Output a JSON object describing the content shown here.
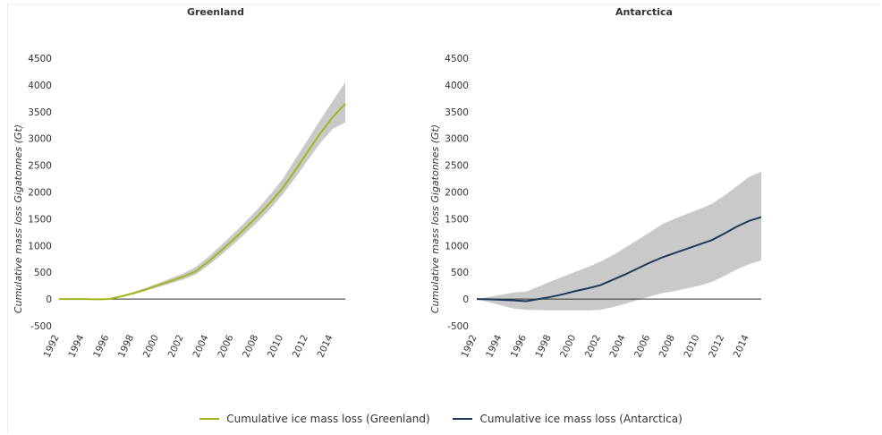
{
  "chart_data": [
    {
      "type": "area",
      "title": "Greenland",
      "xlabel": "",
      "ylabel": "Cumulative mass loss Gigatonnes (Gt)",
      "xlim": [
        1992,
        2015
      ],
      "ylim": [
        -500,
        4500
      ],
      "x_ticks": [
        "1992",
        "1994",
        "1996",
        "1998",
        "2000",
        "2002",
        "2004",
        "2006",
        "2008",
        "2010",
        "2012",
        "2014"
      ],
      "y_ticks": [
        "4500",
        "4000",
        "3500",
        "3000",
        "2500",
        "2000",
        "1500",
        "1000",
        "500",
        "0",
        "-500"
      ],
      "grid": false,
      "series": [
        {
          "name": "Cumulative ice mass loss (Greenland)",
          "color": "#a4b51c",
          "x": [
            1992,
            1993,
            1994,
            1995,
            1996,
            1997,
            1998,
            1999,
            2000,
            2001,
            2002,
            2003,
            2004,
            2005,
            2006,
            2007,
            2008,
            2009,
            2010,
            2011,
            2012,
            2013,
            2014,
            2015
          ],
          "values": [
            0,
            0,
            0,
            -5,
            0,
            50,
            110,
            180,
            260,
            340,
            420,
            520,
            700,
            900,
            1110,
            1330,
            1560,
            1810,
            2080,
            2410,
            2760,
            3100,
            3400,
            3650
          ],
          "lower": [
            0,
            0,
            0,
            -5,
            -5,
            35,
            90,
            155,
            225,
            295,
            365,
            460,
            630,
            820,
            1020,
            1230,
            1450,
            1690,
            1960,
            2270,
            2600,
            2920,
            3180,
            3300
          ],
          "upper": [
            0,
            0,
            0,
            -5,
            5,
            65,
            130,
            210,
            300,
            390,
            480,
            600,
            790,
            1000,
            1220,
            1450,
            1690,
            1960,
            2250,
            2620,
            2980,
            3350,
            3700,
            4050
          ]
        }
      ]
    },
    {
      "type": "area",
      "title": "Antarctica",
      "xlabel": "",
      "ylabel": "Cumulative mass loss Gigatonnes (Gt)",
      "xlim": [
        1992,
        2015
      ],
      "ylim": [
        -500,
        4500
      ],
      "x_ticks": [
        "1992",
        "1994",
        "1996",
        "1998",
        "2000",
        "2002",
        "2004",
        "2006",
        "2008",
        "2010",
        "2012",
        "2014"
      ],
      "y_ticks": [
        "4500",
        "4000",
        "3500",
        "3000",
        "2500",
        "2000",
        "1500",
        "1000",
        "500",
        "0",
        "-500"
      ],
      "grid": false,
      "series": [
        {
          "name": "Cumulative ice mass loss (Antarctica)",
          "color": "#1b3a5c",
          "x": [
            1992,
            1993,
            1994,
            1995,
            1996,
            1997,
            1998,
            1999,
            2000,
            2001,
            2002,
            2003,
            2004,
            2005,
            2006,
            2007,
            2008,
            2009,
            2010,
            2011,
            2012,
            2013,
            2014,
            2015
          ],
          "values": [
            0,
            -5,
            -15,
            -25,
            -40,
            0,
            40,
            90,
            150,
            200,
            260,
            360,
            460,
            570,
            680,
            780,
            860,
            940,
            1020,
            1100,
            1220,
            1350,
            1460,
            1530
          ],
          "lower": [
            0,
            -60,
            -120,
            -180,
            -200,
            -205,
            -210,
            -210,
            -210,
            -210,
            -200,
            -150,
            -90,
            -20,
            50,
            110,
            150,
            200,
            250,
            320,
            430,
            550,
            650,
            720
          ],
          "upper": [
            0,
            40,
            80,
            120,
            140,
            230,
            330,
            420,
            510,
            600,
            700,
            820,
            960,
            1100,
            1250,
            1400,
            1500,
            1590,
            1680,
            1780,
            1930,
            2100,
            2280,
            2380
          ]
        }
      ]
    }
  ],
  "legend": {
    "items": [
      {
        "label": "Cumulative ice mass loss (Greenland)",
        "color": "#a4b51c"
      },
      {
        "label": "Cumulative ice mass loss (Antarctica)",
        "color": "#1b3a5c"
      }
    ]
  },
  "colors": {
    "band": "#c9c9c9",
    "axis": "#333333"
  }
}
